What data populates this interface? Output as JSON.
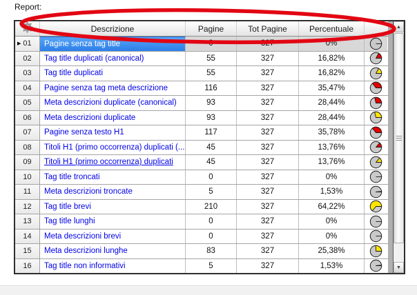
{
  "page": {
    "report_label": "Report:"
  },
  "colors": {
    "selection_blue": "#2c7fe8",
    "link_blue": "#0000e6",
    "pie_red": "#e60000",
    "pie_yellow": "#ffe600",
    "pie_body": "#c9c9c9",
    "annotation_red": "#e20613"
  },
  "table": {
    "columns": [
      {
        "label": "Descrizione"
      },
      {
        "label": "Pagine"
      },
      {
        "label": "Tot Pagine"
      },
      {
        "label": "Percentuale"
      },
      {
        "label": ""
      }
    ],
    "rows": [
      {
        "num": "01",
        "descrizione": "Pagine senza tag title",
        "pagine": "0",
        "tot_pagine": "327",
        "percentuale": "0%",
        "percent_value": 0,
        "pie_color": "gray",
        "selected": true,
        "underline": false
      },
      {
        "num": "02",
        "descrizione": "Tag title duplicati (canonical)",
        "pagine": "55",
        "tot_pagine": "327",
        "percentuale": "16,82%",
        "percent_value": 16.82,
        "pie_color": "red",
        "selected": false,
        "underline": false
      },
      {
        "num": "03",
        "descrizione": "Tag title duplicati",
        "pagine": "55",
        "tot_pagine": "327",
        "percentuale": "16,82%",
        "percent_value": 16.82,
        "pie_color": "yellow",
        "selected": false,
        "underline": false
      },
      {
        "num": "04",
        "descrizione": "Pagine senza tag meta descrizione",
        "pagine": "116",
        "tot_pagine": "327",
        "percentuale": "35,47%",
        "percent_value": 35.47,
        "pie_color": "red",
        "selected": false,
        "underline": false
      },
      {
        "num": "05",
        "descrizione": "Meta descrizioni duplicate (canonical)",
        "pagine": "93",
        "tot_pagine": "327",
        "percentuale": "28,44%",
        "percent_value": 28.44,
        "pie_color": "red",
        "selected": false,
        "underline": false
      },
      {
        "num": "06",
        "descrizione": "Meta descrizioni duplicate",
        "pagine": "93",
        "tot_pagine": "327",
        "percentuale": "28,44%",
        "percent_value": 28.44,
        "pie_color": "yellow",
        "selected": false,
        "underline": false
      },
      {
        "num": "07",
        "descrizione": "Pagine senza testo H1",
        "pagine": "117",
        "tot_pagine": "327",
        "percentuale": "35,78%",
        "percent_value": 35.78,
        "pie_color": "red",
        "selected": false,
        "underline": false
      },
      {
        "num": "08",
        "descrizione": "Titoli H1 (primo occorrenza) duplicati (...",
        "pagine": "45",
        "tot_pagine": "327",
        "percentuale": "13,76%",
        "percent_value": 13.76,
        "pie_color": "red",
        "selected": false,
        "underline": false
      },
      {
        "num": "09",
        "descrizione": "Titoli H1 (primo occorrenza) duplicati",
        "pagine": "45",
        "tot_pagine": "327",
        "percentuale": "13,76%",
        "percent_value": 13.76,
        "pie_color": "yellow",
        "selected": false,
        "underline": true
      },
      {
        "num": "10",
        "descrizione": "Tag title troncati",
        "pagine": "0",
        "tot_pagine": "327",
        "percentuale": "0%",
        "percent_value": 0,
        "pie_color": "gray",
        "selected": false,
        "underline": false
      },
      {
        "num": "11",
        "descrizione": "Meta descrizioni troncate",
        "pagine": "5",
        "tot_pagine": "327",
        "percentuale": "1,53%",
        "percent_value": 1.53,
        "pie_color": "gray",
        "selected": false,
        "underline": false
      },
      {
        "num": "12",
        "descrizione": "Tag title brevi",
        "pagine": "210",
        "tot_pagine": "327",
        "percentuale": "64,22%",
        "percent_value": 64.22,
        "pie_color": "yellow",
        "selected": false,
        "underline": false
      },
      {
        "num": "13",
        "descrizione": "Tag title lunghi",
        "pagine": "0",
        "tot_pagine": "327",
        "percentuale": "0%",
        "percent_value": 0,
        "pie_color": "gray",
        "selected": false,
        "underline": false
      },
      {
        "num": "14",
        "descrizione": "Meta descrizioni brevi",
        "pagine": "0",
        "tot_pagine": "327",
        "percentuale": "0%",
        "percent_value": 0,
        "pie_color": "gray",
        "selected": false,
        "underline": false
      },
      {
        "num": "15",
        "descrizione": "Meta descrizioni lunghe",
        "pagine": "83",
        "tot_pagine": "327",
        "percentuale": "25,38%",
        "percent_value": 25.38,
        "pie_color": "yellow",
        "selected": false,
        "underline": false
      },
      {
        "num": "16",
        "descrizione": "Tag title non informativi",
        "pagine": "5",
        "tot_pagine": "327",
        "percentuale": "1,53%",
        "percent_value": 1.53,
        "pie_color": "gray",
        "selected": false,
        "underline": false
      }
    ]
  },
  "scrollbar": {
    "up_glyph": "▲",
    "down_glyph": "▼"
  },
  "row_marker_glyph": "▶"
}
